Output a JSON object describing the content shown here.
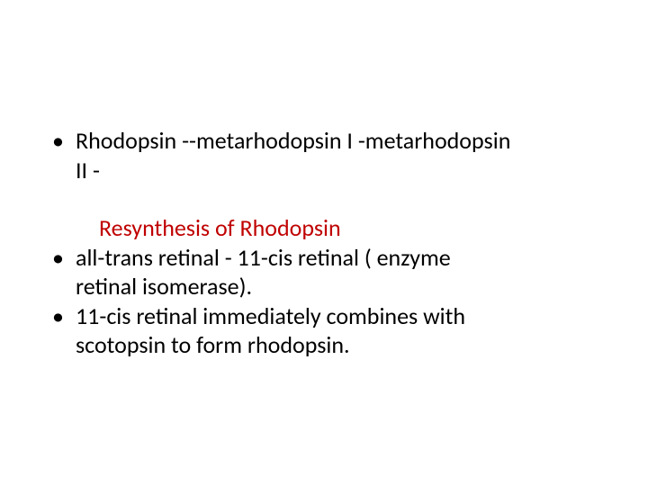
{
  "slide": {
    "text_color": "#000000",
    "heading_color": "#c00000",
    "background_color": "#ffffff",
    "font_family": "Calibri",
    "body_fontsize": 26,
    "bullets": {
      "b1_line1": " Rhodopsin --metarhodopsin I -metarhodopsin",
      "b1_line2": "II -",
      "heading": "Resynthesis of Rhodopsin",
      "b2_line1": " all-trans retinal - 11-cis retinal ( enzyme",
      "b2_line2": "retinal isomerase).",
      "b3_line1": "11-cis retinal immediately combines with",
      "b3_line2": "scotopsin to form rhodopsin."
    }
  }
}
